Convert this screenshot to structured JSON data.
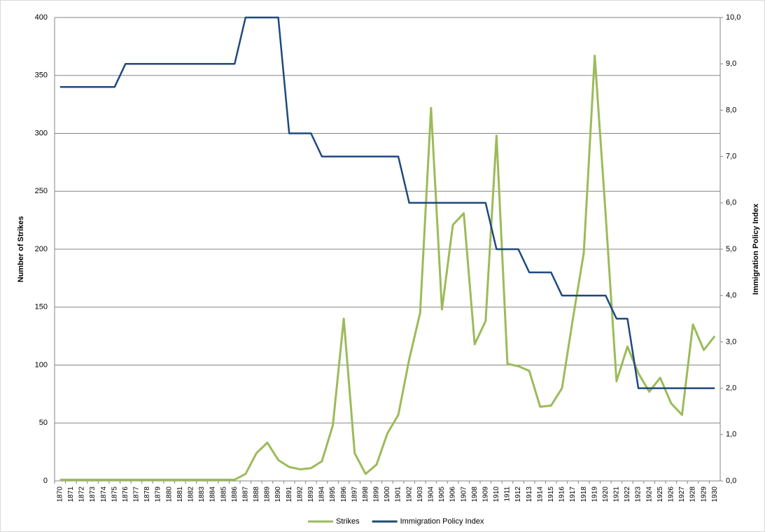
{
  "chart_data": {
    "type": "line",
    "y_label": "Number of Strikes",
    "y2_label": "Immigration Policy Index",
    "categories": [
      "1870",
      "1871",
      "1872",
      "1873",
      "1874",
      "1875",
      "1876",
      "1877",
      "1878",
      "1879",
      "1880",
      "1881",
      "1882",
      "1883",
      "1884",
      "1885",
      "1886",
      "1887",
      "1888",
      "1889",
      "1890",
      "1891",
      "1892",
      "1893",
      "1894",
      "1895",
      "1896",
      "1897",
      "1898",
      "1899",
      "1900",
      "1901",
      "1902",
      "1903",
      "1904",
      "1905",
      "1906",
      "1907",
      "1908",
      "1909",
      "1910",
      "1911",
      "1912",
      "1913",
      "1914",
      "1915",
      "1916",
      "1917",
      "1918",
      "1919",
      "1920",
      "1921",
      "1922",
      "1923",
      "1924",
      "1925",
      "1926",
      "1927",
      "1928",
      "1929",
      "1930"
    ],
    "series": [
      {
        "name": "Strikes",
        "color": "#9bbb59",
        "axis": "y",
        "values": [
          1,
          1,
          1,
          1,
          1,
          1,
          1,
          1,
          1,
          1,
          1,
          1,
          1,
          1,
          1,
          1,
          1,
          6,
          24,
          33,
          18,
          12,
          10,
          11,
          17,
          48,
          140,
          24,
          6,
          14,
          41,
          57,
          105,
          145,
          322,
          148,
          221,
          231,
          118,
          138,
          298,
          101,
          99,
          95,
          64,
          65,
          80,
          140,
          197,
          367,
          230,
          86,
          116,
          93,
          77,
          89,
          67,
          57,
          135,
          113,
          125
        ]
      },
      {
        "name": "Immigration Policy Index",
        "color": "#1f497d",
        "axis": "y2",
        "values": [
          8.5,
          8.5,
          8.5,
          8.5,
          8.5,
          8.5,
          9,
          9,
          9,
          9,
          9,
          9,
          9,
          9,
          9,
          9,
          9,
          10,
          10,
          10,
          10,
          7.5,
          7.5,
          7.5,
          7,
          7,
          7,
          7,
          7,
          7,
          7,
          7,
          6,
          6,
          6,
          6,
          6,
          6,
          6,
          6,
          5,
          5,
          5,
          4.5,
          4.5,
          4.5,
          4,
          4,
          4,
          4,
          4,
          3.5,
          3.5,
          2,
          2,
          2,
          2,
          2,
          2,
          2,
          2
        ]
      }
    ],
    "ylim": [
      0,
      400
    ],
    "yticks": [
      0,
      50,
      100,
      150,
      200,
      250,
      300,
      350,
      400
    ],
    "y2lim": [
      0,
      10
    ],
    "y2ticks": [
      {
        "value": 0,
        "label": "0,0"
      },
      {
        "value": 1,
        "label": "1,0"
      },
      {
        "value": 2,
        "label": "2,0"
      },
      {
        "value": 3,
        "label": "3,0"
      },
      {
        "value": 4,
        "label": "4,0"
      },
      {
        "value": 5,
        "label": "5,0"
      },
      {
        "value": 6,
        "label": "6,0"
      },
      {
        "value": 7,
        "label": "7,0"
      },
      {
        "value": 8,
        "label": "8,0"
      },
      {
        "value": 9,
        "label": "9,0"
      },
      {
        "value": 10,
        "label": "10,0"
      }
    ],
    "grid": true,
    "legend": "bottom"
  }
}
